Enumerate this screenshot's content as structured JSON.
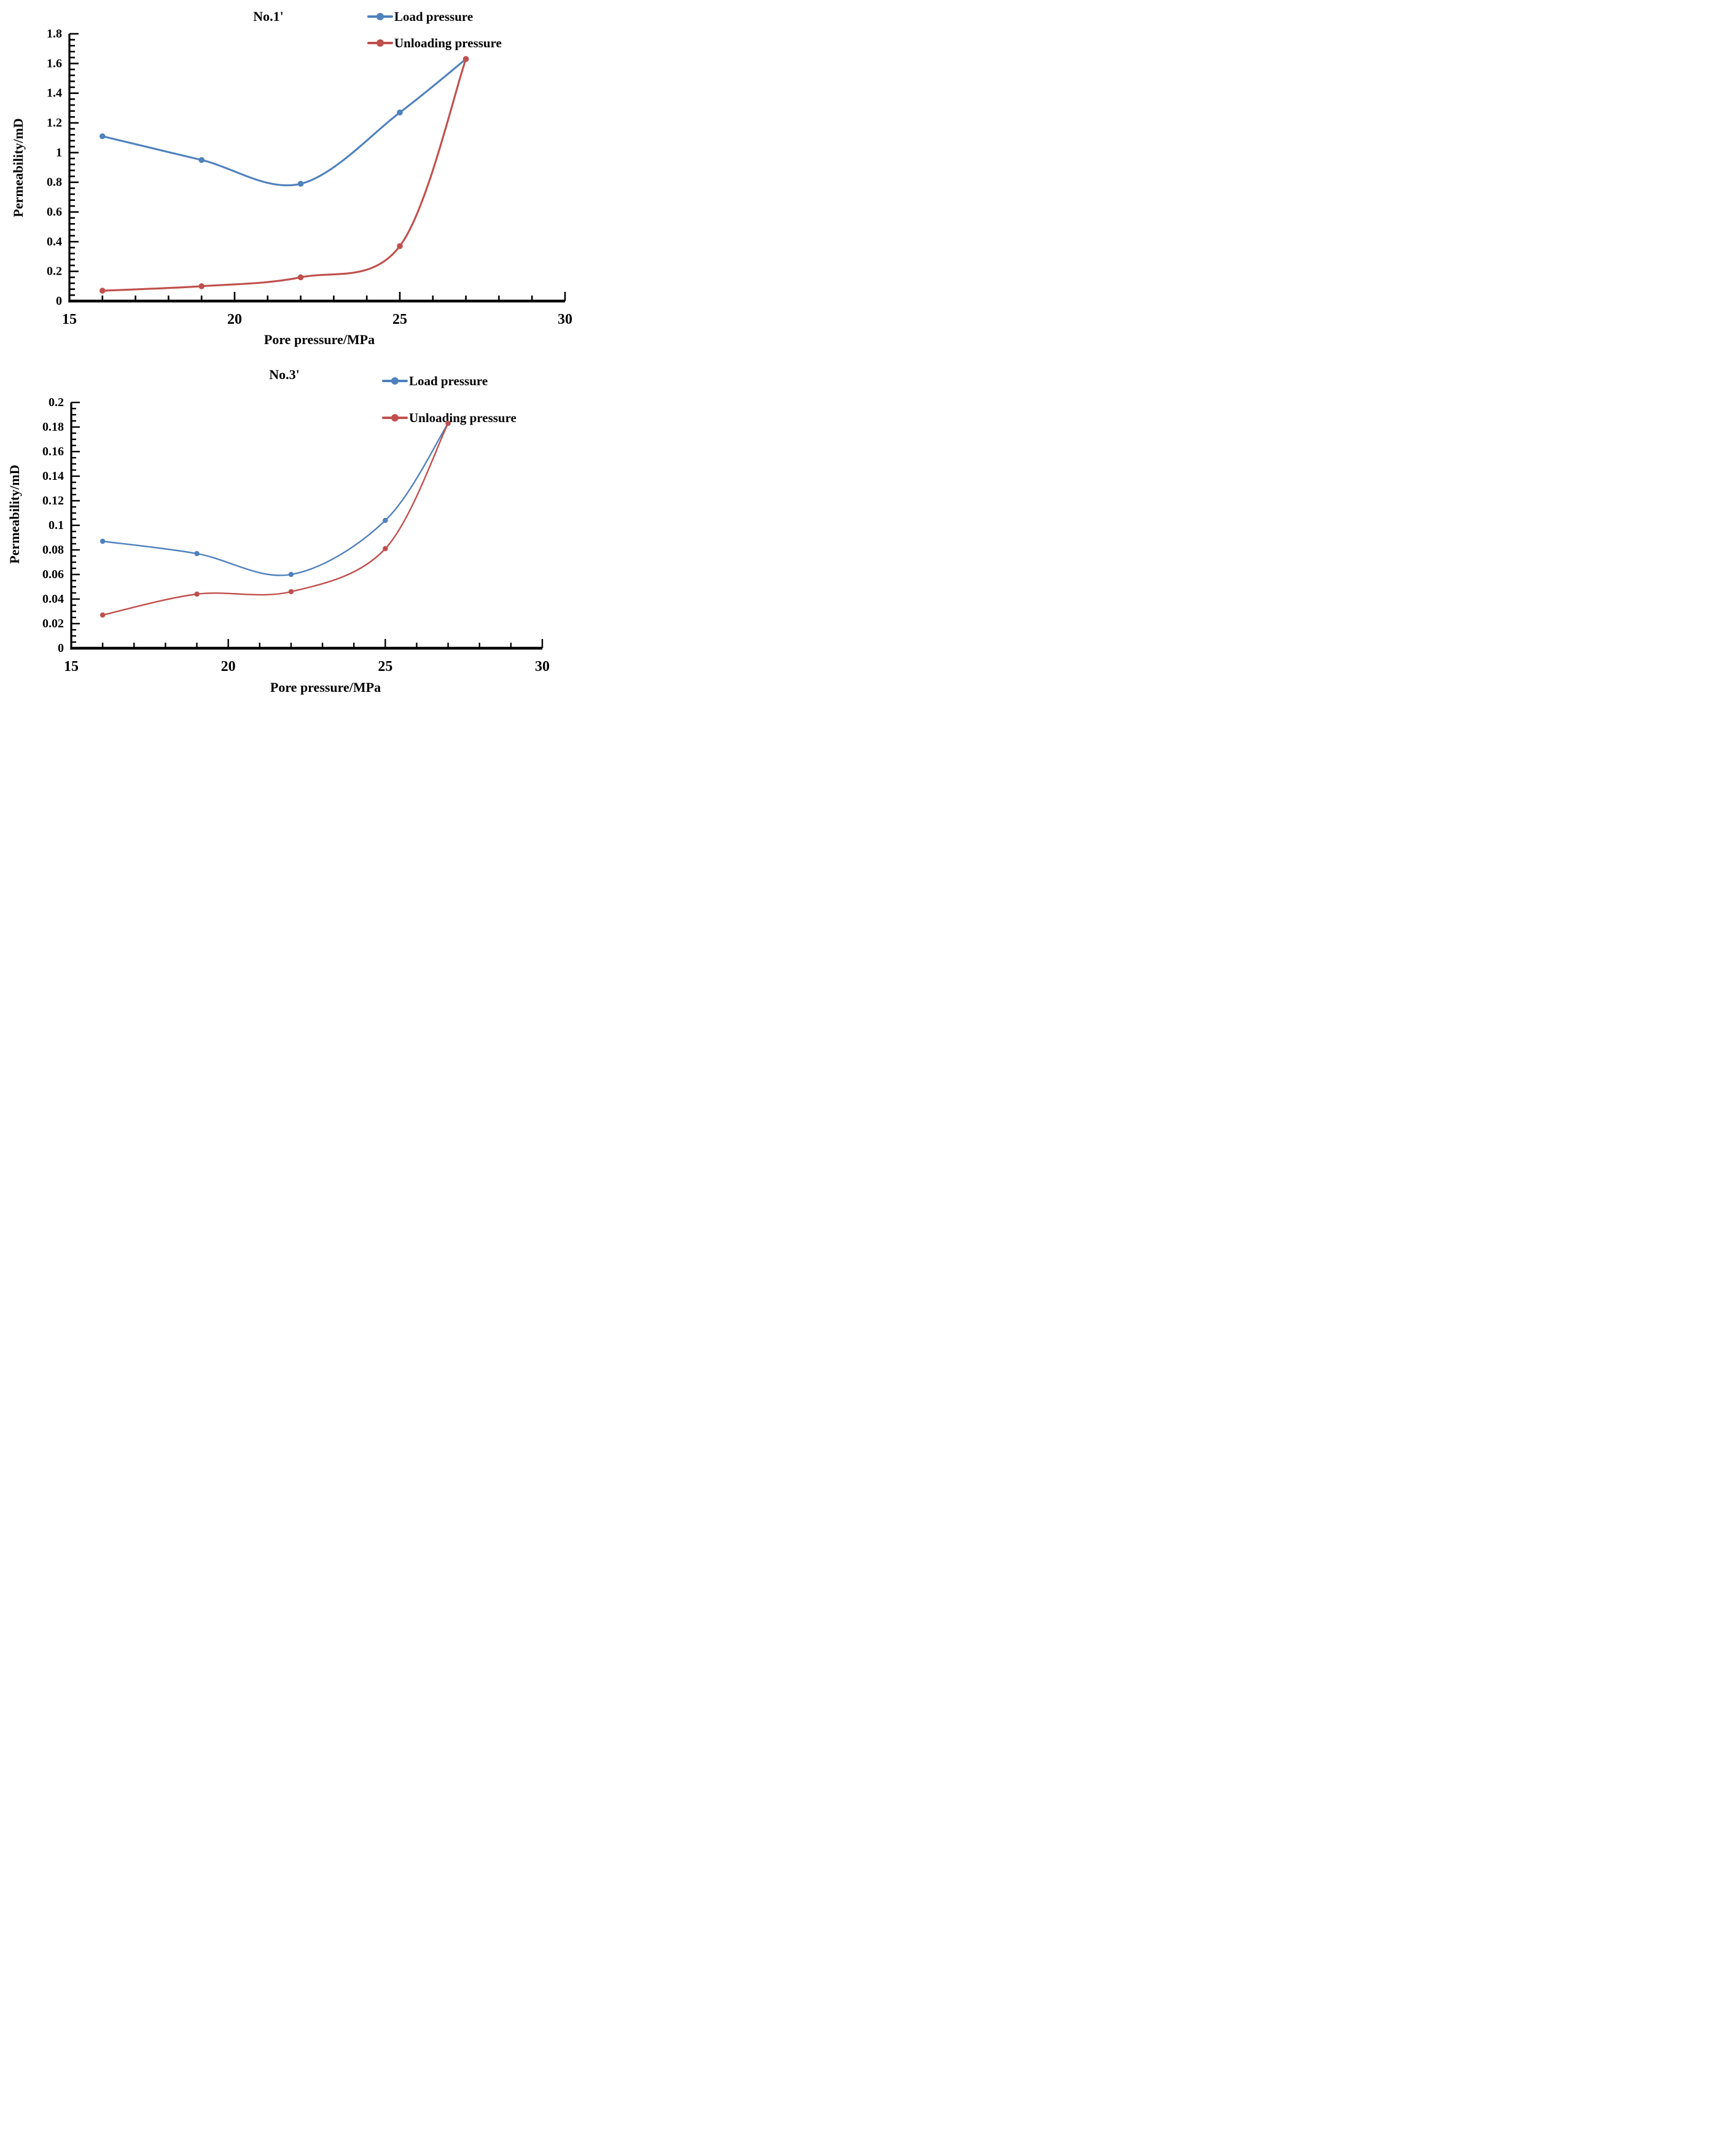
{
  "figure": {
    "background": "#ffffff",
    "axis_color": "#000000"
  },
  "chart_data": [
    {
      "type": "line",
      "title": "No.1'",
      "xlabel": "Pore pressure/MPa",
      "ylabel": "Permeability/mD",
      "x": [
        16,
        19,
        22,
        25,
        27
      ],
      "series": [
        {
          "name": "Load pressure",
          "color": "#4f81bd",
          "values": [
            1.11,
            0.95,
            0.79,
            1.27,
            1.63
          ]
        },
        {
          "name": "Unloading pressure",
          "color": "#c0504d",
          "values": [
            0.07,
            0.1,
            0.16,
            0.37,
            1.63
          ]
        }
      ],
      "xlim": [
        15,
        30
      ],
      "ylim": [
        0,
        1.8
      ],
      "x_major_ticks": [
        15,
        20,
        25,
        30
      ],
      "x_tick_labels": [
        "15",
        "20",
        "25",
        "30"
      ],
      "x_minor_step": 1,
      "y_major_step": 0.2,
      "y_minor_step": 0.04,
      "y_tick_labels": [
        "0",
        "0.2",
        "0.4",
        "0.6",
        "0.8",
        "1",
        "1.2",
        "1.4",
        "1.6",
        "1.8"
      ],
      "legend_position": "top-right",
      "grid": false
    },
    {
      "type": "line",
      "title": "No.3'",
      "xlabel": "Pore pressure/MPa",
      "ylabel": "Permeability/mD",
      "x": [
        16,
        19,
        22,
        25,
        27
      ],
      "series": [
        {
          "name": "Load pressure",
          "color": "#4f81bd",
          "values": [
            0.087,
            0.077,
            0.06,
            0.104,
            0.183
          ]
        },
        {
          "name": "Unloading pressure",
          "color": "#c0504d",
          "values": [
            0.027,
            0.044,
            0.046,
            0.081,
            0.183
          ]
        }
      ],
      "xlim": [
        15,
        30
      ],
      "ylim": [
        0,
        0.2
      ],
      "x_major_ticks": [
        15,
        20,
        25,
        30
      ],
      "x_tick_labels": [
        "15",
        "20",
        "25",
        "30"
      ],
      "x_minor_step": 1,
      "y_major_step": 0.02,
      "y_minor_step": 0.005,
      "y_tick_labels": [
        "0",
        "0.02",
        "0.04",
        "0.06",
        "0.08",
        "0.1",
        "0.12",
        "0.14",
        "0.16",
        "0.18",
        "0.2"
      ],
      "legend_position": "top-right",
      "grid": false
    }
  ]
}
